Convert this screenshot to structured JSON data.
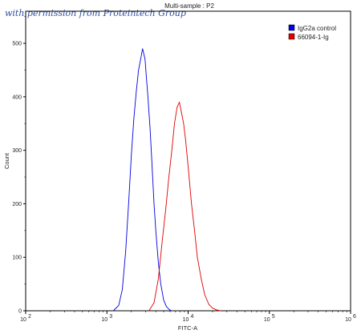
{
  "chart_data": {
    "type": "line",
    "title": "Multi-sample : P2",
    "xlabel": "FITC-A",
    "ylabel": "Count",
    "xscale": "log",
    "xlim": [
      100,
      1000000
    ],
    "ylim": [
      0,
      560
    ],
    "grid": false,
    "legend_position": "top-right",
    "x_ticks": [
      100,
      1000,
      10000,
      100000,
      1000000
    ],
    "x_tick_labels": [
      "10",
      "10",
      "10",
      "10",
      "10"
    ],
    "x_tick_exponents": [
      "2",
      "3",
      "4",
      "5",
      "6"
    ],
    "y_ticks": [
      0,
      100,
      200,
      300,
      400,
      500
    ],
    "y_tick_labels": [
      "0",
      "100",
      "200",
      "300",
      "400",
      "500"
    ],
    "series": [
      {
        "name": "IgG2a control",
        "color": "#0000e0",
        "x": [
          1200,
          1400,
          1550,
          1700,
          1850,
          2000,
          2150,
          2300,
          2450,
          2600,
          2750,
          2850,
          2950,
          3050,
          3200,
          3400,
          3600,
          3800,
          4000,
          4300,
          4600,
          5000,
          5400,
          5800,
          6200
        ],
        "y": [
          0,
          10,
          40,
          110,
          200,
          290,
          360,
          410,
          450,
          470,
          490,
          480,
          470,
          440,
          400,
          340,
          270,
          200,
          150,
          90,
          50,
          20,
          8,
          3,
          0
        ]
      },
      {
        "name": "66094-1-Ig",
        "color": "#e00000",
        "x": [
          3300,
          3800,
          4300,
          4800,
          5300,
          5800,
          6300,
          6800,
          7300,
          7800,
          8300,
          8800,
          9300,
          10000,
          11000,
          12000,
          13000,
          14500,
          16000,
          18000,
          20000,
          22000,
          25000
        ],
        "y": [
          0,
          15,
          60,
          130,
          190,
          250,
          300,
          350,
          380,
          390,
          370,
          350,
          320,
          270,
          200,
          150,
          100,
          60,
          30,
          12,
          5,
          2,
          0
        ]
      }
    ]
  },
  "watermark_text": "with permission from Proteintech Group"
}
